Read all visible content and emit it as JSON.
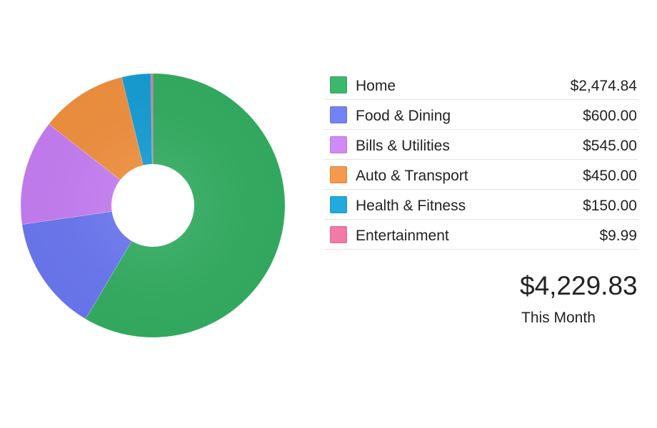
{
  "chart_data": {
    "type": "pie",
    "categories": [
      "Home",
      "Food & Dining",
      "Bills & Utilities",
      "Auto & Transport",
      "Health & Fitness",
      "Entertainment"
    ],
    "values": [
      2474.84,
      600.0,
      545.0,
      450.0,
      150.0,
      9.99
    ],
    "colors": [
      "#34ae62",
      "#6b78f1",
      "#c77ef4",
      "#f2913f",
      "#179fd7",
      "#f06a9c"
    ],
    "title": "",
    "legend_position": "right"
  },
  "legend": {
    "items": [
      {
        "label": "Home",
        "amount": "$2,474.84",
        "color": "#3cb86c"
      },
      {
        "label": "Food & Dining",
        "amount": "$600.00",
        "color": "#7482f5"
      },
      {
        "label": "Bills & Utilities",
        "amount": "$545.00",
        "color": "#cf8af6"
      },
      {
        "label": "Auto & Transport",
        "amount": "$450.00",
        "color": "#f59a4c"
      },
      {
        "label": "Health & Fitness",
        "amount": "$150.00",
        "color": "#22a9de"
      },
      {
        "label": "Entertainment",
        "amount": "$9.99",
        "color": "#f27aa6"
      }
    ]
  },
  "summary": {
    "total": "$4,229.83",
    "caption": "This Month"
  }
}
